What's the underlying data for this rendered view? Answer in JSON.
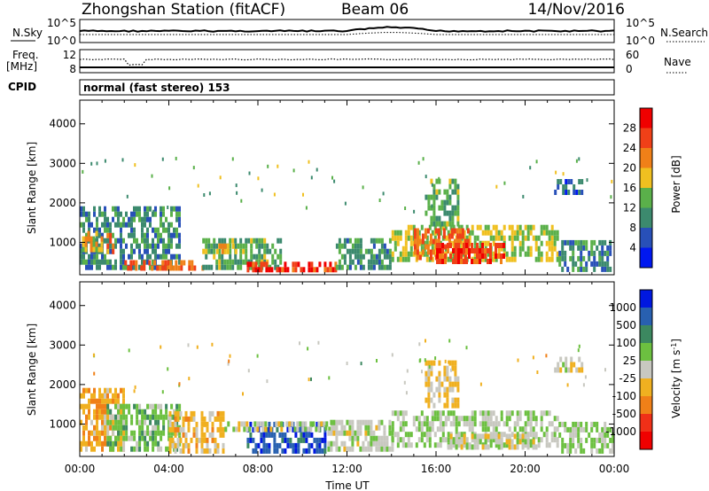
{
  "header": {
    "title": "Zhongshan Station (fitACF)",
    "beam": "Beam 06",
    "date": "14/Nov/2016"
  },
  "nsky_panel": {
    "left_label": "N.Sky",
    "left_ticks": [
      "10^5",
      "10^0"
    ],
    "right_ticks": [
      "10^5",
      "10^0"
    ],
    "right_label": "N.Search"
  },
  "freq_panel": {
    "left_label_line1": "Freq.",
    "left_label_line2": "[MHz]",
    "left_ticks": [
      "12",
      "8"
    ],
    "right_ticks": [
      "60",
      "0"
    ],
    "right_label": "Nave"
  },
  "cpid_panel": {
    "label": "CPID",
    "text": "normal (fast stereo) 153"
  },
  "colors": {
    "power_scale": [
      "#0018f0",
      "#2850b8",
      "#3c8a6e",
      "#5ab04a",
      "#f0c020",
      "#f08018",
      "#f04018",
      "#f00000"
    ],
    "velocity_scale": [
      "#0018e0",
      "#2860b0",
      "#3c8860",
      "#6cc040",
      "#c8c8c0",
      "#f0b020",
      "#f08018",
      "#f03018",
      "#f00000"
    ]
  },
  "chart_data": [
    {
      "type": "heatmap",
      "name": "power",
      "xlabel": "",
      "ylabel": "Slant Range [km]",
      "xlim": [
        0,
        24
      ],
      "ylim": [
        180,
        4600
      ],
      "yticks": [
        "1000",
        "2000",
        "3000",
        "4000"
      ],
      "xticks": [],
      "colorbar": {
        "label": "Power [dB]",
        "ticks": [
          "4",
          "8",
          "12",
          "16",
          "20",
          "24",
          "28"
        ],
        "range": [
          0,
          32
        ]
      },
      "regions": [
        {
          "t0": 0.0,
          "t1": 4.5,
          "r0": 300,
          "r1": 1800,
          "v": 10
        },
        {
          "t0": 0.1,
          "t1": 1.0,
          "r0": 750,
          "r1": 1200,
          "v": 19
        },
        {
          "t0": 1.2,
          "t1": 1.5,
          "r0": 700,
          "r1": 1200,
          "v": 22
        },
        {
          "t0": 2.0,
          "t1": 5.5,
          "r0": 280,
          "r1": 450,
          "v": 24
        },
        {
          "t0": 5.5,
          "t1": 9.0,
          "r0": 300,
          "r1": 1100,
          "v": 13
        },
        {
          "t0": 6.0,
          "t1": 7.0,
          "r0": 700,
          "r1": 900,
          "v": 20
        },
        {
          "t0": 7.5,
          "t1": 11.5,
          "r0": 240,
          "r1": 480,
          "v": 27
        },
        {
          "t0": 11.5,
          "t1": 14.0,
          "r0": 300,
          "r1": 1100,
          "v": 11
        },
        {
          "t0": 14.0,
          "t1": 21.5,
          "r0": 500,
          "r1": 1350,
          "v": 16
        },
        {
          "t0": 15.0,
          "t1": 17.5,
          "r0": 550,
          "r1": 1300,
          "v": 24
        },
        {
          "t0": 16.0,
          "t1": 19.0,
          "r0": 450,
          "r1": 900,
          "v": 27
        },
        {
          "t0": 15.5,
          "t1": 17.0,
          "r0": 1400,
          "r1": 2600,
          "v": 13
        },
        {
          "t0": 21.3,
          "t1": 22.5,
          "r0": 2200,
          "r1": 2600,
          "v": 7
        },
        {
          "t0": 21.5,
          "t1": 24.0,
          "r0": 250,
          "r1": 1000,
          "v": 10
        }
      ]
    },
    {
      "type": "heatmap",
      "name": "velocity",
      "xlabel": "Time UT",
      "ylabel": "Slant Range [km]",
      "xlim": [
        0,
        24
      ],
      "ylim": [
        180,
        4600
      ],
      "yticks": [
        "1000",
        "2000",
        "3000",
        "4000"
      ],
      "xticks": [
        "00:00",
        "04:00",
        "08:00",
        "12:00",
        "16:00",
        "20:00",
        "00:00"
      ],
      "colorbar": {
        "label": "Velocity [m s^-1]",
        "ticks": [
          "1000",
          "500",
          "100",
          "25",
          "-25",
          "-100",
          "-500",
          "-1000"
        ],
        "range": [
          -1250,
          1250
        ]
      },
      "regions": [
        {
          "t0": 0.0,
          "t1": 2.0,
          "r0": 300,
          "r1": 1800,
          "v": -350
        },
        {
          "t0": 1.2,
          "t1": 4.5,
          "r0": 300,
          "r1": 1400,
          "v": 300
        },
        {
          "t0": 4.0,
          "t1": 6.5,
          "r0": 250,
          "r1": 1200,
          "v": -250
        },
        {
          "t0": 7.5,
          "t1": 11.0,
          "r0": 250,
          "r1": 1000,
          "v": 900
        },
        {
          "t0": 6.5,
          "t1": 11.5,
          "r0": 800,
          "r1": 1000,
          "v": 0
        },
        {
          "t0": 11.0,
          "t1": 14.0,
          "r0": 300,
          "r1": 1000,
          "v": 60
        },
        {
          "t0": 14.0,
          "t1": 21.5,
          "r0": 400,
          "r1": 1300,
          "v": 120
        },
        {
          "t0": 16.5,
          "t1": 20.5,
          "r0": 350,
          "r1": 700,
          "v": 0
        },
        {
          "t0": 15.5,
          "t1": 17.0,
          "r0": 1400,
          "r1": 2600,
          "v": -150
        },
        {
          "t0": 21.3,
          "t1": 22.5,
          "r0": 2300,
          "r1": 2600,
          "v": 0
        },
        {
          "t0": 21.5,
          "t1": 24.0,
          "r0": 250,
          "r1": 1000,
          "v": 150
        }
      ]
    }
  ]
}
